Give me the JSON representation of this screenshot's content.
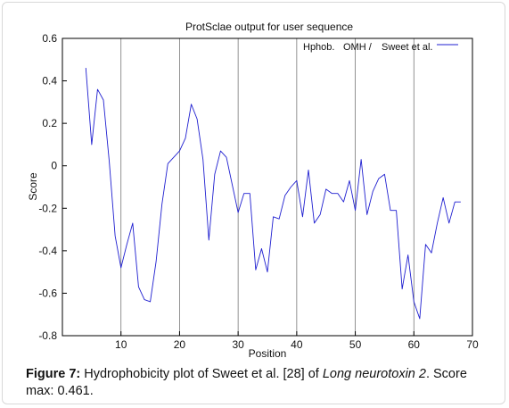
{
  "chart_data": {
    "type": "line",
    "title": "ProtSclae output for user sequence",
    "xlabel": "Position",
    "ylabel": "Score",
    "xlim": [
      0,
      70
    ],
    "ylim": [
      -0.8,
      0.6
    ],
    "xticks": [
      10,
      20,
      30,
      40,
      50,
      60,
      70
    ],
    "yticks": [
      0.6,
      0.4,
      0.2,
      0,
      -0.2,
      -0.4,
      -0.6,
      -0.8
    ],
    "ytick_labels": [
      "0.6",
      "0.4",
      "0.2",
      "0",
      "-0.2",
      "-0.4",
      "-0.6",
      "-0.8"
    ],
    "grid": "vertical",
    "legend_position": "top-right",
    "series": [
      {
        "name": "Hphob. OMH / Sweet et al.",
        "color": "#1f1fd0",
        "x": [
          4,
          5,
          6,
          7,
          8,
          9,
          10,
          11,
          12,
          13,
          14,
          15,
          16,
          17,
          18,
          19,
          20,
          21,
          22,
          23,
          24,
          25,
          26,
          27,
          28,
          29,
          30,
          31,
          32,
          33,
          34,
          35,
          36,
          37,
          38,
          39,
          40,
          41,
          42,
          43,
          44,
          45,
          46,
          47,
          48,
          49,
          50,
          51,
          52,
          53,
          54,
          55,
          56,
          57,
          58,
          59,
          60,
          61,
          62,
          63,
          64,
          65,
          66,
          67,
          68
        ],
        "values": [
          0.461,
          0.1,
          0.36,
          0.31,
          0.02,
          -0.33,
          -0.48,
          -0.37,
          -0.27,
          -0.57,
          -0.63,
          -0.64,
          -0.45,
          -0.18,
          0.01,
          0.04,
          0.07,
          0.13,
          0.29,
          0.22,
          0.03,
          -0.35,
          -0.04,
          0.07,
          0.04,
          -0.09,
          -0.22,
          -0.13,
          -0.13,
          -0.49,
          -0.39,
          -0.5,
          -0.24,
          -0.25,
          -0.14,
          -0.1,
          -0.07,
          -0.24,
          -0.02,
          -0.27,
          -0.23,
          -0.11,
          -0.13,
          -0.13,
          -0.17,
          -0.07,
          -0.21,
          0.03,
          -0.23,
          -0.12,
          -0.06,
          -0.04,
          -0.21,
          -0.21,
          -0.58,
          -0.42,
          -0.64,
          -0.72,
          -0.37,
          -0.41,
          -0.27,
          -0.15,
          -0.27,
          -0.17,
          -0.17
        ]
      }
    ],
    "legend": {
      "labels": [
        "Hphob.",
        "OMH /",
        "Sweet et al."
      ]
    }
  },
  "caption": {
    "label": "Figure 7:",
    "text_before": " Hydrophobicity plot of Sweet et al. [28] of ",
    "italic": "Long neurotoxin 2",
    "text_after": ". Score max: 0.461."
  }
}
